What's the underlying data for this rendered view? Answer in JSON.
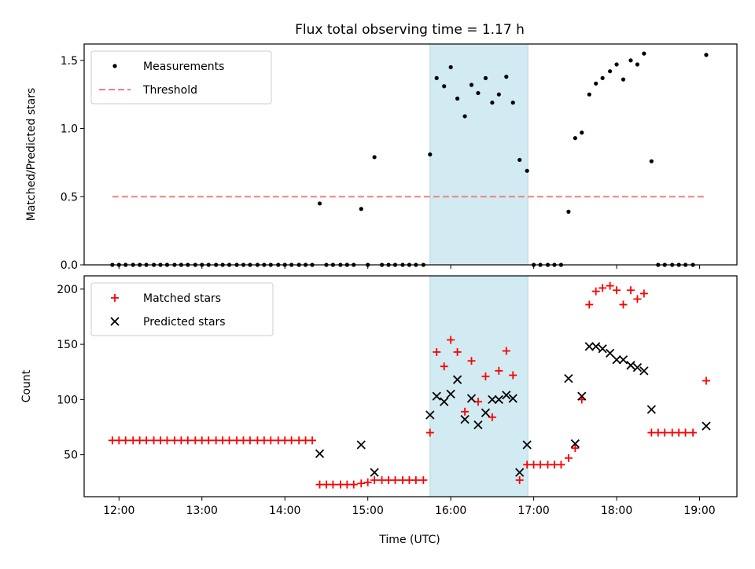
{
  "title": "Flux total observing time = 1.17 h",
  "xlabel": "Time (UTC)",
  "xticks": [
    "12:00",
    "13:00",
    "14:00",
    "15:00",
    "16:00",
    "17:00",
    "18:00",
    "19:00"
  ],
  "colors": {
    "measurements": "#000000",
    "threshold": "#f08080",
    "matched": "#ff0000",
    "predicted": "#000000",
    "highlight": "#add8e6"
  },
  "chart_data": [
    {
      "type": "scatter",
      "ylabel": "Matched/Predicted stars",
      "ylim": [
        0,
        1.62
      ],
      "yticks": [
        "0.0",
        "0.5",
        "1.0",
        "1.5"
      ],
      "xlim_hours": [
        11.58,
        19.45
      ],
      "highlight_span": [
        15.75,
        16.93
      ],
      "legend_position": "upper left",
      "series": [
        {
          "name": "Measurements",
          "marker": "dot",
          "x": [
            11.92,
            12.0,
            12.08,
            12.17,
            12.25,
            12.33,
            12.42,
            12.5,
            12.58,
            12.67,
            12.75,
            12.83,
            12.92,
            13.0,
            13.08,
            13.17,
            13.25,
            13.33,
            13.42,
            13.5,
            13.58,
            13.67,
            13.75,
            13.83,
            13.92,
            14.0,
            14.08,
            14.17,
            14.25,
            14.33,
            14.42,
            14.5,
            14.58,
            14.67,
            14.75,
            14.83,
            14.92,
            15.0,
            15.08,
            15.17,
            15.25,
            15.33,
            15.42,
            15.5,
            15.58,
            15.67,
            15.75,
            15.83,
            15.92,
            16.0,
            16.08,
            16.17,
            16.25,
            16.33,
            16.42,
            16.5,
            16.58,
            16.67,
            16.75,
            16.83,
            16.92,
            17.0,
            17.08,
            17.17,
            17.25,
            17.33,
            17.42,
            17.5,
            17.58,
            17.67,
            17.75,
            17.83,
            17.92,
            18.0,
            18.08,
            18.17,
            18.25,
            18.33,
            18.42,
            18.5,
            18.58,
            18.67,
            18.75,
            18.83,
            18.92,
            19.08
          ],
          "y": [
            0,
            0,
            0,
            0,
            0,
            0,
            0,
            0,
            0,
            0,
            0,
            0,
            0,
            0,
            0,
            0,
            0,
            0,
            0,
            0,
            0,
            0,
            0,
            0,
            0,
            0,
            0,
            0,
            0,
            0,
            0.45,
            0,
            0,
            0,
            0,
            0,
            0.41,
            0,
            0.79,
            0,
            0,
            0,
            0,
            0,
            0,
            0,
            0.81,
            1.37,
            1.31,
            1.45,
            1.22,
            1.09,
            1.32,
            1.26,
            1.37,
            1.19,
            1.25,
            1.38,
            1.19,
            0.77,
            0.69,
            0,
            0,
            0,
            0,
            0,
            0.39,
            0.93,
            0.97,
            1.25,
            1.33,
            1.37,
            1.42,
            1.47,
            1.36,
            1.5,
            1.47,
            1.55,
            0.76,
            0,
            0,
            0,
            0,
            0,
            0,
            1.54
          ]
        },
        {
          "name": "Threshold",
          "style": "dashed",
          "x": [
            11.92,
            19.08
          ],
          "y": [
            0.5,
            0.5
          ]
        }
      ]
    },
    {
      "type": "scatter",
      "ylabel": "Count",
      "ylim": [
        12,
        212
      ],
      "yticks": [
        "50",
        "100",
        "150",
        "200"
      ],
      "xlim_hours": [
        11.58,
        19.45
      ],
      "highlight_span": [
        15.75,
        16.93
      ],
      "legend_position": "upper left",
      "series": [
        {
          "name": "Matched stars",
          "marker": "plus",
          "x": [
            11.92,
            12.0,
            12.08,
            12.17,
            12.25,
            12.33,
            12.42,
            12.5,
            12.58,
            12.67,
            12.75,
            12.83,
            12.92,
            13.0,
            13.08,
            13.17,
            13.25,
            13.33,
            13.42,
            13.5,
            13.58,
            13.67,
            13.75,
            13.83,
            13.92,
            14.0,
            14.08,
            14.17,
            14.25,
            14.33,
            14.42,
            14.5,
            14.58,
            14.67,
            14.75,
            14.83,
            14.92,
            15.0,
            15.08,
            15.17,
            15.25,
            15.33,
            15.42,
            15.5,
            15.58,
            15.67,
            15.75,
            15.83,
            15.92,
            16.0,
            16.08,
            16.17,
            16.25,
            16.33,
            16.42,
            16.5,
            16.58,
            16.67,
            16.75,
            16.83,
            16.92,
            17.0,
            17.08,
            17.17,
            17.25,
            17.33,
            17.42,
            17.5,
            17.58,
            17.67,
            17.75,
            17.83,
            17.92,
            18.0,
            18.08,
            18.17,
            18.25,
            18.33,
            18.42,
            18.5,
            18.58,
            18.67,
            18.75,
            18.83,
            18.92,
            19.08
          ],
          "y": [
            63,
            63,
            63,
            63,
            63,
            63,
            63,
            63,
            63,
            63,
            63,
            63,
            63,
            63,
            63,
            63,
            63,
            63,
            63,
            63,
            63,
            63,
            63,
            63,
            63,
            63,
            63,
            63,
            63,
            63,
            23,
            23,
            23,
            23,
            23,
            23,
            24,
            25,
            27,
            27,
            27,
            27,
            27,
            27,
            27,
            27,
            70,
            143,
            130,
            154,
            143,
            89,
            135,
            98,
            121,
            84,
            126,
            144,
            122,
            27,
            41,
            41,
            41,
            41,
            41,
            41,
            47,
            56,
            100,
            186,
            198,
            201,
            203,
            199,
            186,
            199,
            191,
            196,
            70,
            70,
            70,
            70,
            70,
            70,
            70,
            117
          ]
        },
        {
          "name": "Predicted stars",
          "marker": "x",
          "x": [
            14.42,
            14.92,
            15.08,
            15.75,
            15.83,
            15.92,
            16.0,
            16.08,
            16.17,
            16.25,
            16.33,
            16.42,
            16.5,
            16.58,
            16.67,
            16.75,
            16.83,
            16.92,
            17.42,
            17.5,
            17.58,
            17.67,
            17.75,
            17.83,
            17.92,
            18.0,
            18.08,
            18.17,
            18.25,
            18.33,
            18.42,
            19.08
          ],
          "y": [
            51,
            59,
            34,
            86,
            103,
            98,
            105,
            118,
            82,
            101,
            77,
            88,
            100,
            100,
            104,
            101,
            34,
            59,
            119,
            60,
            103,
            148,
            148,
            146,
            142,
            136,
            136,
            131,
            129,
            126,
            91,
            76
          ]
        }
      ]
    }
  ]
}
